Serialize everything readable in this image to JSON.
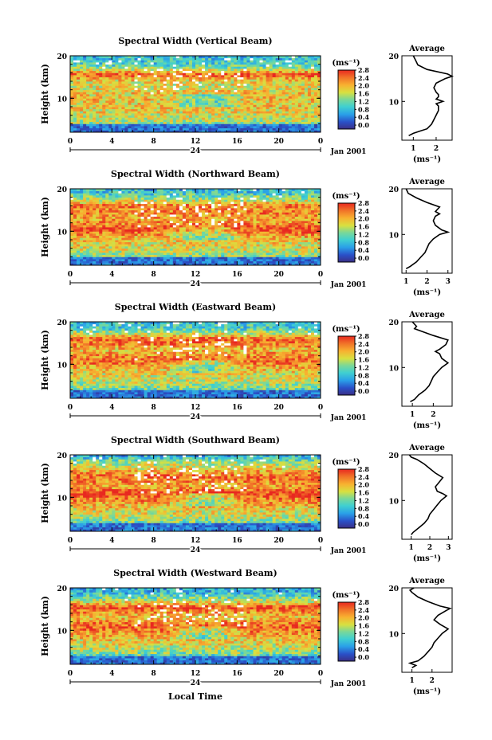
{
  "figure": {
    "date_label": "Jan 2001",
    "bottom_xlabel": "Local Time",
    "avg_title": "Average",
    "cbar_unit": "(ms⁻¹)",
    "avg_xlabel": "(ms⁻¹)"
  },
  "chart_data": [
    {
      "type": "heatmap",
      "title": "Spectral Width (Vertical Beam)",
      "ylabel": "Height (km)",
      "x_ticks": [
        "0",
        "4",
        "8",
        "12",
        "16",
        "20",
        "0"
      ],
      "x_sub_label": "24",
      "y_ticks": [
        "20",
        "10"
      ],
      "xlim": [
        0,
        24
      ],
      "ylim": [
        2,
        20
      ],
      "colorbar": {
        "label": "(ms⁻¹)",
        "ticks": [
          "2.8",
          "2.4",
          "2.0",
          "1.6",
          "1.2",
          "0.8",
          "0.4",
          "0.0"
        ],
        "range": [
          0,
          3.0
        ]
      },
      "average_profile": {
        "title": "Average",
        "xlabel": "(ms⁻¹)",
        "x_ticks": [
          "1",
          "2"
        ],
        "y_ticks": [
          "20",
          "10"
        ],
        "xlim": [
          0.5,
          2.7
        ],
        "height": [
          2.5,
          3,
          3.5,
          4,
          5,
          6,
          7,
          8,
          9,
          9.5,
          10,
          10.5,
          11,
          11.5,
          12,
          13,
          14,
          15,
          15.5,
          16,
          17,
          18,
          19,
          20
        ],
        "value": [
          0.8,
          1.0,
          1.3,
          1.6,
          1.8,
          1.9,
          2.0,
          2.1,
          2.1,
          2.0,
          2.3,
          2.0,
          2.1,
          2.1,
          2.0,
          1.9,
          2.0,
          2.4,
          2.7,
          2.5,
          1.6,
          1.2,
          1.1,
          1.0
        ]
      }
    },
    {
      "type": "heatmap",
      "title": "Spectral Width (Northward Beam)",
      "ylabel": "Height (km)",
      "x_ticks": [
        "0",
        "4",
        "8",
        "12",
        "16",
        "20",
        "0"
      ],
      "x_sub_label": "24",
      "y_ticks": [
        "20",
        "10"
      ],
      "xlim": [
        0,
        24
      ],
      "ylim": [
        2,
        20
      ],
      "colorbar": {
        "label": "(ms⁻¹)",
        "ticks": [
          "2.8",
          "2.4",
          "2.0",
          "1.6",
          "1.2",
          "0.8",
          "0.4",
          "0.0"
        ],
        "range": [
          0,
          3.0
        ]
      },
      "average_profile": {
        "title": "Average",
        "xlabel": "(ms⁻¹)",
        "x_ticks": [
          "1",
          "2",
          "3"
        ],
        "y_ticks": [
          "20",
          "10"
        ],
        "xlim": [
          0.8,
          3.2
        ],
        "height": [
          2.5,
          3,
          4,
          5,
          6,
          7,
          8,
          9,
          10,
          10.5,
          11,
          12,
          13,
          14,
          14.5,
          15,
          16,
          17,
          18,
          19,
          20
        ],
        "value": [
          1.0,
          1.2,
          1.5,
          1.7,
          1.9,
          2.0,
          2.1,
          2.3,
          2.6,
          3.0,
          2.7,
          2.4,
          2.3,
          2.4,
          2.6,
          2.4,
          2.6,
          2.0,
          1.5,
          1.1,
          1.0
        ]
      }
    },
    {
      "type": "heatmap",
      "title": "Spectral Width (Eastward Beam)",
      "ylabel": "Height (km)",
      "x_ticks": [
        "0",
        "4",
        "8",
        "12",
        "16",
        "20",
        "0"
      ],
      "x_sub_label": "24",
      "y_ticks": [
        "20",
        "10"
      ],
      "xlim": [
        0,
        24
      ],
      "ylim": [
        2,
        20
      ],
      "colorbar": {
        "label": "(ms⁻¹)",
        "ticks": [
          "2.8",
          "2.4",
          "2.0",
          "1.6",
          "1.2",
          "0.8",
          "0.4",
          "0.0"
        ],
        "range": [
          0,
          3.0
        ]
      },
      "average_profile": {
        "title": "Average",
        "xlabel": "(ms⁻¹)",
        "x_ticks": [
          "1",
          "2"
        ],
        "y_ticks": [
          "20",
          "10"
        ],
        "xlim": [
          0.5,
          2.9
        ],
        "height": [
          2.5,
          3,
          4,
          5,
          6,
          7,
          8,
          9,
          10,
          11,
          12,
          13,
          13.5,
          14,
          15,
          16,
          17,
          18,
          18.5,
          19,
          20
        ],
        "value": [
          0.9,
          1.1,
          1.3,
          1.6,
          1.8,
          1.9,
          2.0,
          2.2,
          2.4,
          2.7,
          2.4,
          2.3,
          2.1,
          2.3,
          2.6,
          2.7,
          2.0,
          1.4,
          1.1,
          1.2,
          1.0
        ]
      }
    },
    {
      "type": "heatmap",
      "title": "Spectral Width (Southward Beam)",
      "ylabel": "Height (km)",
      "x_ticks": [
        "0",
        "4",
        "8",
        "12",
        "16",
        "20",
        "0"
      ],
      "x_sub_label": "24",
      "y_ticks": [
        "20",
        "10"
      ],
      "xlim": [
        0,
        24
      ],
      "ylim": [
        2,
        20
      ],
      "colorbar": {
        "label": "(ms⁻¹)",
        "ticks": [
          "2.8",
          "2.4",
          "2.0",
          "1.6",
          "1.2",
          "0.8",
          "0.4",
          "0.0"
        ],
        "range": [
          0,
          3.0
        ]
      },
      "average_profile": {
        "title": "Average",
        "xlabel": "(ms⁻¹)",
        "x_ticks": [
          "1",
          "2",
          "3"
        ],
        "y_ticks": [
          "20",
          "10"
        ],
        "xlim": [
          0.5,
          3.2
        ],
        "height": [
          2.5,
          3,
          4,
          5,
          6,
          7,
          8,
          9,
          10,
          11,
          11.5,
          12,
          13,
          14,
          15,
          16,
          17,
          18,
          19,
          19.5,
          20
        ],
        "value": [
          1.0,
          1.1,
          1.4,
          1.7,
          1.9,
          2.0,
          2.2,
          2.4,
          2.6,
          2.9,
          2.7,
          2.4,
          2.3,
          2.5,
          2.7,
          2.3,
          2.0,
          1.7,
          1.3,
          1.0,
          0.9
        ]
      }
    },
    {
      "type": "heatmap",
      "title": "Spectral Width (Westward Beam)",
      "ylabel": "Height (km)",
      "x_ticks": [
        "0",
        "4",
        "8",
        "12",
        "16",
        "20",
        "0"
      ],
      "x_sub_label": "24",
      "y_ticks": [
        "20",
        "10"
      ],
      "xlim": [
        0,
        24
      ],
      "ylim": [
        2,
        20
      ],
      "colorbar": {
        "label": "(ms⁻¹)",
        "ticks": [
          "2.8",
          "2.4",
          "2.0",
          "1.6",
          "1.2",
          "0.8",
          "0.4",
          "0.0"
        ],
        "range": [
          0,
          3.0
        ]
      },
      "average_profile": {
        "title": "Average",
        "xlabel": "(ms⁻¹)",
        "x_ticks": [
          "1",
          "2"
        ],
        "y_ticks": [
          "20",
          "10"
        ],
        "xlim": [
          0.5,
          3.0
        ],
        "height": [
          2.5,
          3,
          3.5,
          4,
          5,
          6,
          7,
          8,
          9,
          10,
          11,
          12,
          13,
          14,
          15,
          15.5,
          16,
          17,
          18,
          19,
          19.5,
          20
        ],
        "value": [
          1.0,
          1.2,
          0.9,
          1.3,
          1.6,
          1.8,
          2.0,
          2.1,
          2.3,
          2.5,
          2.8,
          2.4,
          2.1,
          2.3,
          2.7,
          2.9,
          2.4,
          1.8,
          1.3,
          1.0,
          0.9,
          1.1
        ]
      }
    }
  ]
}
